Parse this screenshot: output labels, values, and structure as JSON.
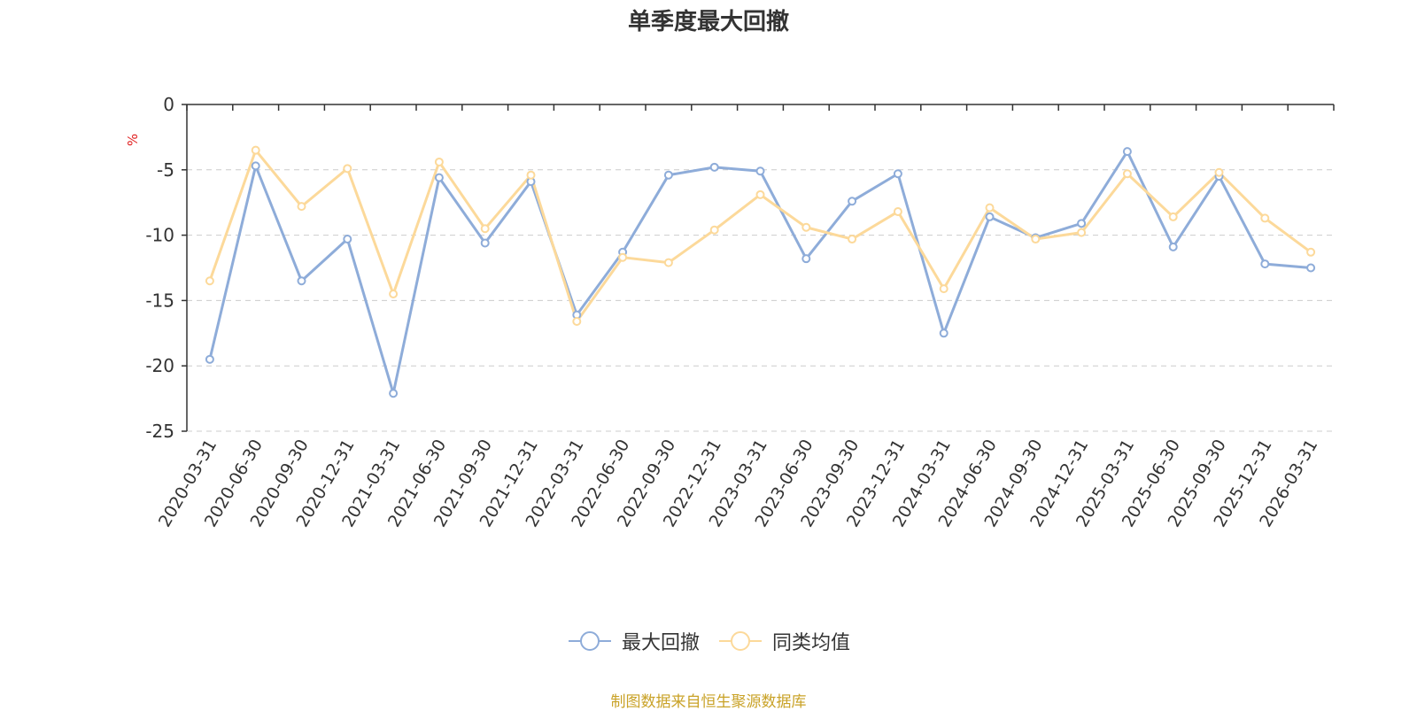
{
  "chart_data": {
    "type": "line",
    "title": "单季度最大回撤",
    "ylabel": "%",
    "ylim": [
      -25,
      0
    ],
    "yticks": [
      0,
      -5,
      -10,
      -15,
      -20,
      -25
    ],
    "grid": "horizontal-dashed",
    "legend_position": "bottom",
    "x": [
      "2020-03-31",
      "2020-06-30",
      "2020-09-30",
      "2020-12-31",
      "2021-03-31",
      "2021-06-30",
      "2021-09-30",
      "2021-12-31",
      "2022-03-31",
      "2022-06-30",
      "2022-09-30",
      "2022-12-31",
      "2023-03-31",
      "2023-06-30",
      "2023-09-30",
      "2023-12-31",
      "2024-03-31",
      "2024-06-30",
      "2024-09-30",
      "2024-12-31",
      "2025-03-31",
      "2025-06-30",
      "2025-09-30",
      "2025-12-31",
      "2026-03-31"
    ],
    "series": [
      {
        "name": "最大回撤",
        "color": "#8eacd9",
        "values": [
          -19.5,
          -4.7,
          -13.5,
          -10.3,
          -22.1,
          -5.6,
          -10.6,
          -5.9,
          -16.1,
          -11.3,
          -5.4,
          -4.8,
          -5.1,
          -11.8,
          -7.4,
          -5.3,
          -17.5,
          -8.6,
          -10.2,
          -9.1,
          -3.6,
          -10.9,
          -5.5,
          -12.2,
          -12.5
        ]
      },
      {
        "name": "同类均值",
        "color": "#fcd99a",
        "values": [
          -13.5,
          -3.5,
          -7.8,
          -4.9,
          -14.5,
          -4.4,
          -9.5,
          -5.4,
          -16.6,
          -11.7,
          -12.1,
          -9.6,
          -6.9,
          -9.4,
          -10.3,
          -8.2,
          -14.1,
          -7.9,
          -10.3,
          -9.8,
          -5.3,
          -8.6,
          -5.2,
          -8.7,
          -11.3
        ]
      }
    ]
  },
  "footer": {
    "source": "制图数据来自恒生聚源数据库",
    "source_color": "#c9a227"
  }
}
